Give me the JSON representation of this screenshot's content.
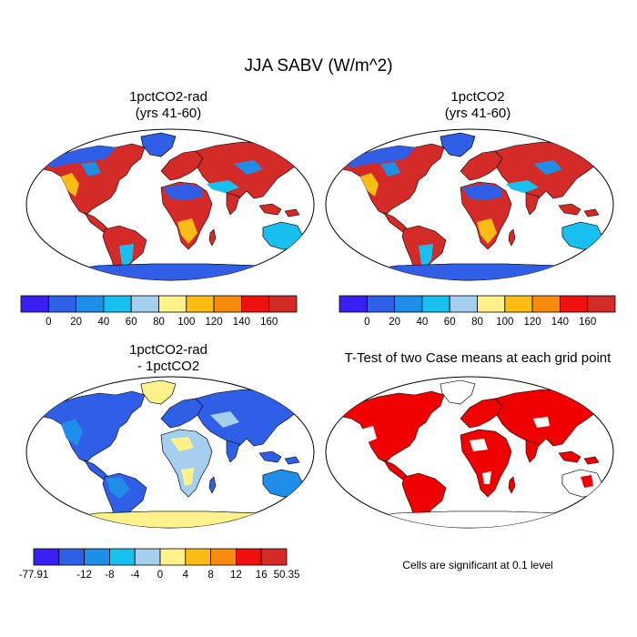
{
  "figure": {
    "main_title": "JJA SABV (W/m^2)"
  },
  "panels": [
    {
      "id": "rad",
      "title_line1": "1pctCO2-rad",
      "title_line2": "(yrs 41-60)"
    },
    {
      "id": "co2",
      "title_line1": "1pctCO2",
      "title_line2": "(yrs 41-60)"
    },
    {
      "id": "diff",
      "title_line1": "1pctCO2-rad",
      "title_line2": "- 1pctCO2"
    },
    {
      "id": "ttest",
      "title_line1": "T-Test of two Case means at each grid point",
      "title_line2": ""
    }
  ],
  "colorbars": {
    "top": {
      "colors": [
        "#3a1ff5",
        "#2f5fe6",
        "#1f8ee8",
        "#17c0ef",
        "#a4cfee",
        "#fff28a",
        "#fbbd13",
        "#f88a0d",
        "#f0110f",
        "#d42a28"
      ],
      "labels": [
        "0",
        "20",
        "40",
        "60",
        "80",
        "100",
        "120",
        "140",
        "160"
      ]
    },
    "diff": {
      "colors": [
        "#3a1ff5",
        "#2f5fe6",
        "#1f8ee8",
        "#17c0ef",
        "#a4cfee",
        "#fff28a",
        "#fbbd13",
        "#f88a0d",
        "#f0110f",
        "#d42a28"
      ],
      "labels": [
        "-77.91",
        "-12",
        "-8",
        "-4",
        "0",
        "4",
        "8",
        "12",
        "16",
        "50.35"
      ]
    }
  },
  "significance": {
    "note": "Cells are significant at 0.1 level",
    "color": "#f00000"
  }
}
